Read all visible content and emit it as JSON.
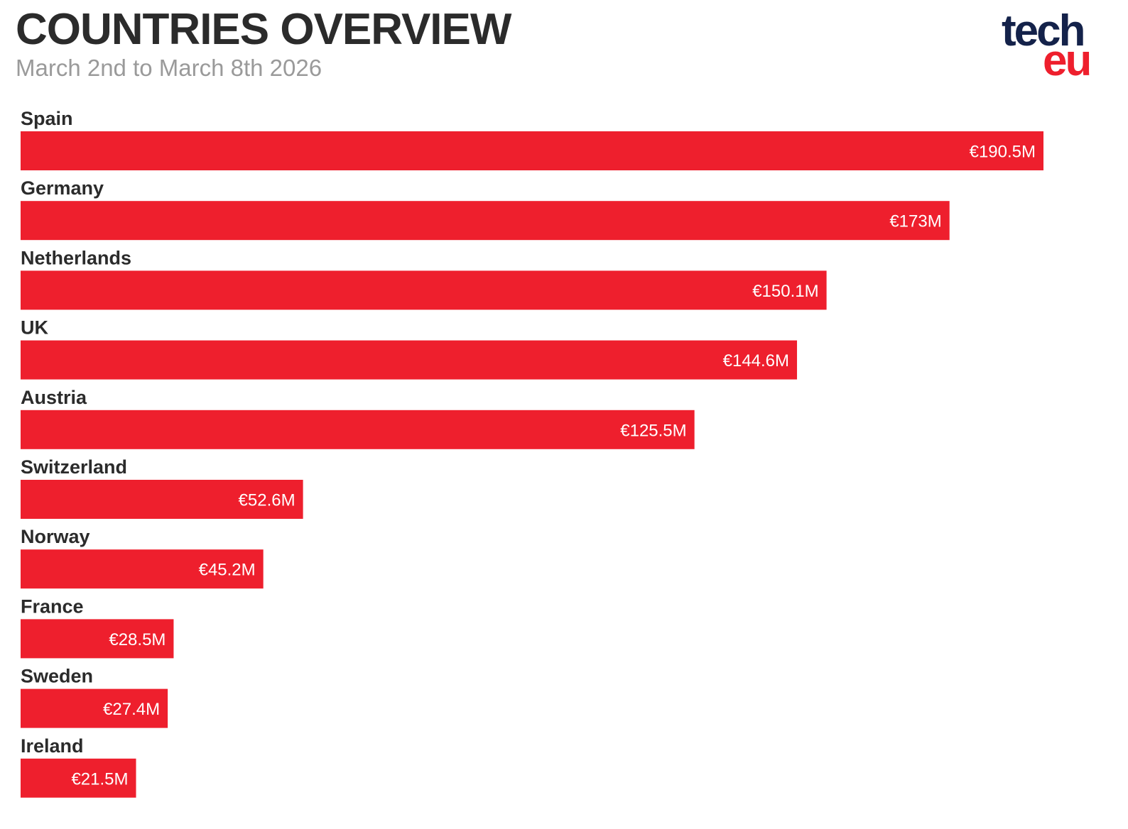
{
  "header": {
    "title": "COUNTRIES OVERVIEW",
    "subtitle": "March 2nd to March 8th 2026"
  },
  "logo": {
    "line1": "tech",
    "line2": "eu"
  },
  "colors": {
    "bar": "#ee1f2d",
    "title": "#2b2b2b",
    "subtitle": "#9a9a9a",
    "logo_dark": "#14224a",
    "logo_red": "#ee1f2d"
  },
  "chart_data": {
    "type": "bar",
    "orientation": "horizontal",
    "categories": [
      "Spain",
      "Germany",
      "Netherlands",
      "UK",
      "Austria",
      "Switzerland",
      "Norway",
      "France",
      "Sweden",
      "Ireland"
    ],
    "values": [
      190.5,
      173,
      150.1,
      144.6,
      125.5,
      52.6,
      45.2,
      28.5,
      27.4,
      21.5
    ],
    "value_labels": [
      "€190.5M",
      "€173M",
      "€150.1M",
      "€144.6M",
      "€125.5M",
      "€52.6M",
      "€45.2M",
      "€28.5M",
      "€27.4M",
      "€21.5M"
    ],
    "title": "COUNTRIES OVERVIEW",
    "subtitle": "March 2nd to March 8th 2026",
    "xlabel": "",
    "ylabel": "",
    "grid": false,
    "legend": "none"
  }
}
